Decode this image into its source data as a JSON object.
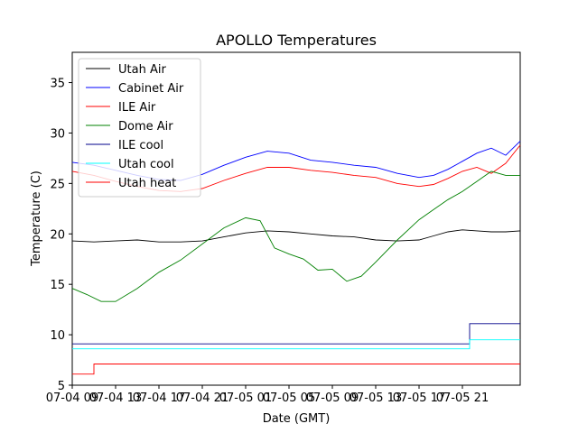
{
  "chart_data": {
    "type": "line",
    "title": "APOLLO Temperatures",
    "xlabel": "Date (GMT)",
    "ylabel": "Temperature (C)",
    "xlim": [
      0,
      62
    ],
    "ylim": [
      5,
      38
    ],
    "xticks": [
      {
        "value": 0,
        "label": "07-04 09"
      },
      {
        "value": 6,
        "label": "07-04 13"
      },
      {
        "value": 12,
        "label": "07-04 17"
      },
      {
        "value": 18,
        "label": "07-04 21"
      },
      {
        "value": 24,
        "label": "07-05 01"
      },
      {
        "value": 30,
        "label": "07-05 05"
      },
      {
        "value": 36,
        "label": "07-05 09"
      },
      {
        "value": 42,
        "label": "07-05 13"
      },
      {
        "value": 48,
        "label": "07-05 17"
      },
      {
        "value": 54,
        "label": "07-05 21"
      }
    ],
    "yticks": [
      5,
      10,
      15,
      20,
      25,
      30,
      35
    ],
    "legend_position": "top-left",
    "series": [
      {
        "name": "Utah Air",
        "color": "#000000",
        "x": [
          0,
          3,
          6,
          9,
          12,
          15,
          18,
          21,
          24,
          27,
          30,
          33,
          36,
          39,
          42,
          45,
          48,
          50,
          52,
          54,
          56,
          58,
          60,
          62
        ],
        "y": [
          19.3,
          19.2,
          19.3,
          19.4,
          19.2,
          19.2,
          19.3,
          19.7,
          20.1,
          20.3,
          20.2,
          20.0,
          19.8,
          19.7,
          19.4,
          19.3,
          19.4,
          19.8,
          20.2,
          20.4,
          20.3,
          20.2,
          20.2,
          20.3
        ]
      },
      {
        "name": "Cabinet Air",
        "color": "#0000ff",
        "x": [
          0,
          3,
          6,
          9,
          12,
          15,
          18,
          21,
          24,
          27,
          30,
          33,
          36,
          39,
          42,
          45,
          48,
          50,
          52,
          54,
          56,
          58,
          60,
          62
        ],
        "y": [
          27.1,
          26.8,
          26.3,
          25.8,
          25.4,
          25.3,
          25.9,
          26.8,
          27.6,
          28.2,
          28.0,
          27.3,
          27.1,
          26.8,
          26.6,
          26.0,
          25.6,
          25.8,
          26.4,
          27.2,
          28.0,
          28.5,
          27.8,
          29.2
        ]
      },
      {
        "name": "ILE Air",
        "color": "#ff0000",
        "x": [
          0,
          3,
          6,
          9,
          12,
          15,
          18,
          21,
          24,
          27,
          30,
          33,
          36,
          39,
          42,
          45,
          48,
          50,
          52,
          54,
          56,
          58,
          60,
          62
        ],
        "y": [
          26.2,
          25.8,
          25.2,
          24.7,
          24.3,
          24.2,
          24.5,
          25.3,
          26.0,
          26.6,
          26.6,
          26.3,
          26.1,
          25.8,
          25.6,
          25.0,
          24.7,
          24.9,
          25.5,
          26.2,
          26.6,
          26.0,
          27.0,
          28.8
        ]
      },
      {
        "name": "Dome Air",
        "color": "#008000",
        "x": [
          0,
          2,
          4,
          6,
          9,
          12,
          15,
          18,
          21,
          24,
          26,
          28,
          30,
          32,
          34,
          36,
          38,
          40,
          42,
          45,
          48,
          50,
          52,
          54,
          56,
          58,
          60,
          62
        ],
        "y": [
          14.6,
          14.0,
          13.3,
          13.3,
          14.6,
          16.2,
          17.4,
          19.0,
          20.6,
          21.6,
          21.3,
          18.6,
          18.0,
          17.5,
          16.4,
          16.5,
          15.3,
          15.8,
          17.2,
          19.4,
          21.4,
          22.4,
          23.4,
          24.2,
          25.2,
          26.2,
          25.8,
          25.8
        ]
      },
      {
        "name": "ILE cool",
        "color": "#00008b",
        "x": [
          0,
          55,
          55,
          62
        ],
        "y": [
          9.1,
          9.1,
          11.1,
          11.1
        ]
      },
      {
        "name": "Utah cool",
        "color": "#00ffff",
        "x": [
          0,
          55,
          55,
          62
        ],
        "y": [
          8.6,
          8.6,
          9.5,
          9.5
        ]
      },
      {
        "name": "Utah heat",
        "color": "#ff0000",
        "x": [
          0,
          3,
          3,
          62
        ],
        "y": [
          6.1,
          6.1,
          7.1,
          7.1
        ]
      }
    ]
  }
}
